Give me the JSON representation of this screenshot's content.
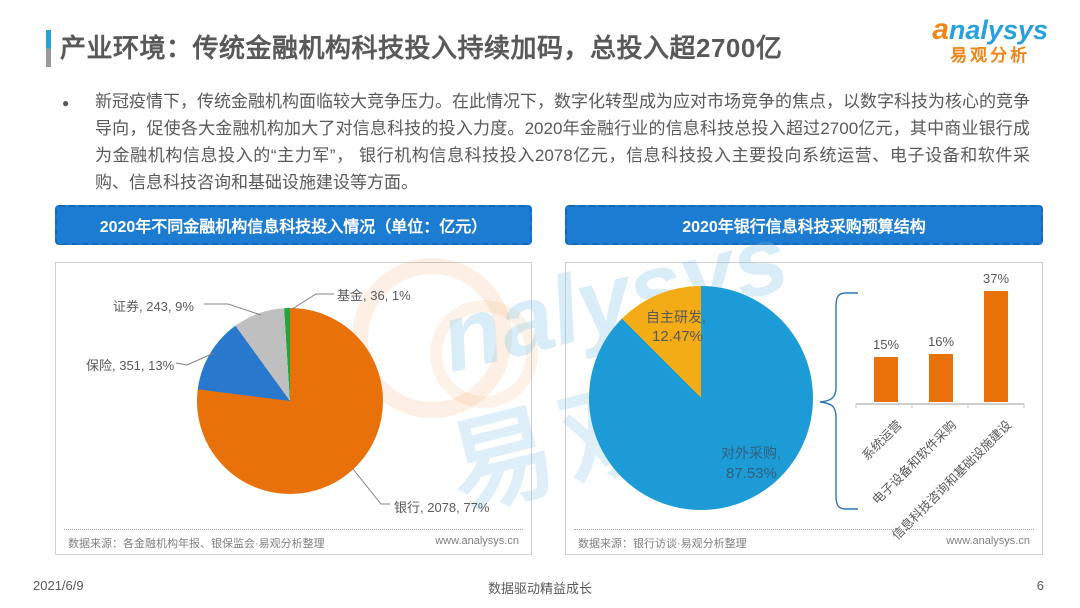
{
  "header": {
    "title": "产业环境：传统金融机构科技投入持续加码，总投入超2700亿",
    "logo": {
      "brand_a": "a",
      "brand_rest": "nalysys",
      "brand_cn": "易观分析"
    }
  },
  "intro": {
    "bullet": "●",
    "text": "新冠疫情下，传统金融机构面临较大竞争压力。在此情况下，数字化转型成为应对市场竞争的焦点，以数字科技为核心的竞争导向，促使各大金融机构加大了对信息科技的投入力度。2020年金融行业的信息科技总投入超过2700亿元，其中商业银行成为金融机构信息投入的“主力军”， 银行机构信息科技投入2078亿元，信息科技投入主要投向系统运营、电子设备和软件采购、信息科技咨询和基础设施建设等方面。"
  },
  "watermark": {
    "text_latin": "nalysys",
    "text_cn": "易观"
  },
  "left_panel": {
    "header": "2020年不同金融机构信息科技投入情况（单位：亿元）",
    "labels": {
      "securities": "证券, 243, 9%",
      "insurance": "保险, 351, 13%",
      "funds": "基金, 36, 1%",
      "banks": "银行, 2078, 77%"
    },
    "source": "数据来源：各金融机构年报、银保监会·易观分析整理",
    "url": "www.analysys.cn"
  },
  "right_panel": {
    "header": "2020年银行信息科技采购预算结构",
    "pie_labels": {
      "inhouse_name": "自主研发,",
      "inhouse_pct": "12.47%",
      "external_name": "对外采购,",
      "external_pct": "87.53%"
    },
    "bars": [
      {
        "label": "系统运营",
        "pct": "15%"
      },
      {
        "label": "电子设备和软件采购",
        "pct": "16%"
      },
      {
        "label": "信息科技咨询和基础设施建设",
        "pct": "37%"
      }
    ],
    "source": "数据来源：银行访谈·易观分析整理",
    "url": "www.analysys.cn"
  },
  "footer": {
    "date": "2021/6/9",
    "slogan": "数据驱动精益成长",
    "page_number": "6"
  },
  "colors": {
    "header_blue": "#1b7cd2",
    "bank_orange": "#e8710a",
    "insurance_blue": "#2878ce",
    "securities_gray": "#bfbfbf",
    "funds_green": "#22a63c",
    "external_sky_blue": "#1d9bd6",
    "inhouse_amber": "#f3ac15",
    "bar_orange": "#e8710a"
  },
  "chart_data": [
    {
      "type": "pie",
      "title": "2020年不同金融机构信息科技投入情况（单位：亿元）",
      "categories": [
        "银行",
        "保险",
        "证券",
        "基金"
      ],
      "values": [
        2078,
        351,
        243,
        36
      ],
      "percents": [
        77,
        13,
        9,
        1
      ],
      "colors": [
        "#e8710a",
        "#2878ce",
        "#bfbfbf",
        "#22a63c"
      ],
      "data_labels": [
        "银行, 2078, 77%",
        "保险, 351, 13%",
        "证券, 243, 9%",
        "基金, 36, 1%"
      ],
      "legend_position": "none"
    },
    {
      "type": "pie",
      "title": "2020年银行信息科技采购预算结构",
      "categories": [
        "对外采购",
        "自主研发"
      ],
      "values": [
        87.53,
        12.47
      ],
      "unit": "%",
      "colors": [
        "#1d9bd6",
        "#f3ac15"
      ],
      "data_labels": [
        "对外采购, 87.53%",
        "自主研发, 12.47%"
      ],
      "legend_position": "none"
    },
    {
      "type": "bar",
      "title": "2020年银行信息科技采购预算结构（采购方向占比）",
      "categories": [
        "系统运营",
        "电子设备和软件采购",
        "信息科技咨询和基础设施建设"
      ],
      "values": [
        15,
        16,
        37
      ],
      "unit": "%",
      "bar_color": "#e8710a",
      "ylim": [
        0,
        40
      ],
      "grid": false
    }
  ]
}
